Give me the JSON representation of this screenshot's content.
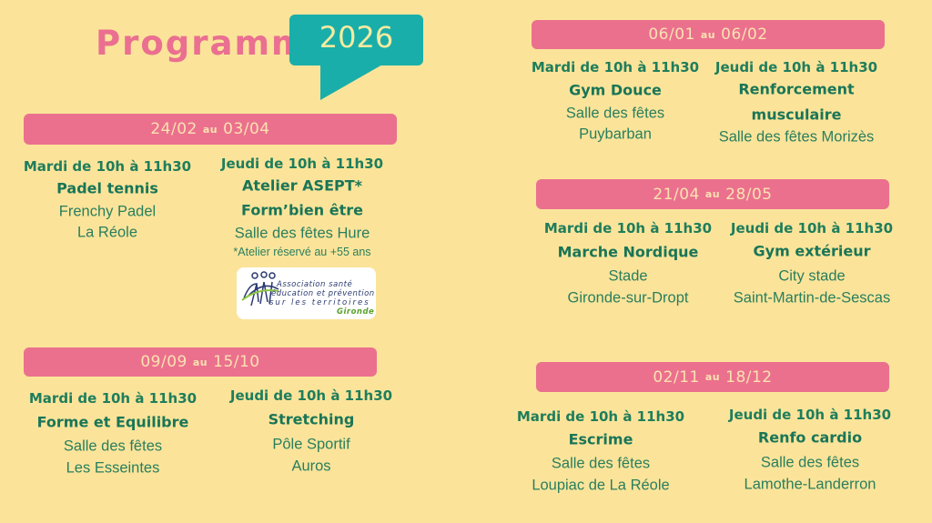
{
  "header": {
    "title": "Programme",
    "year": "2026"
  },
  "colors": {
    "background": "#fbe49a",
    "pink": "#eb708e",
    "teal": "#1aaeaa",
    "text_green": "#1f7d5c"
  },
  "sessions": [
    {
      "from": "06/01",
      "au": "au",
      "to": "06/02",
      "left": {
        "day": "Mardi de 10h à 11h30",
        "activity": [
          "Gym Douce"
        ],
        "place": [
          "Salle des fêtes",
          "Puybarban"
        ]
      },
      "right": {
        "day": "Jeudi de 10h à 11h30",
        "activity": [
          "Renforcement",
          "musculaire"
        ],
        "place": [
          "Salle des fêtes Morizès"
        ]
      }
    },
    {
      "from": "24/02",
      "au": "au",
      "to": "03/04",
      "left": {
        "day": "Mardi de 10h à 11h30",
        "activity": [
          "Padel tennis"
        ],
        "place": [
          "Frenchy Padel",
          "La Réole"
        ]
      },
      "right": {
        "day": "Jeudi de 10h à 11h30",
        "activity": [
          "Atelier ASEPT*",
          "Form’bien être"
        ],
        "place": [
          "Salle des fêtes Hure"
        ],
        "note": "*Atelier réservé au +55 ans"
      }
    },
    {
      "from": "21/04",
      "au": "au",
      "to": "28/05",
      "left": {
        "day": "Mardi de 10h à 11h30",
        "activity": [
          "Marche Nordique"
        ],
        "place": [
          "Stade",
          "Gironde-sur-Dropt"
        ]
      },
      "right": {
        "day": "Jeudi de 10h à 11h30",
        "activity": [
          "Gym extérieur"
        ],
        "place": [
          "City stade",
          "Saint-Martin-de-Sescas"
        ]
      }
    },
    {
      "from": "09/09",
      "au": "au",
      "to": "15/10",
      "left": {
        "day": "Mardi de 10h à 11h30",
        "activity": [
          "Forme et Equilibre"
        ],
        "place": [
          "Salle des fêtes",
          "Les Esseintes"
        ]
      },
      "right": {
        "day": "Jeudi de 10h à 11h30",
        "activity": [
          "Stretching"
        ],
        "place": [
          "Pôle Sportif",
          "Auros"
        ]
      }
    },
    {
      "from": "02/11",
      "au": "au",
      "to": "18/12",
      "left": {
        "day": "Mardi de 10h à 11h30",
        "activity": [
          "Escrime"
        ],
        "place": [
          "Salle des fêtes",
          "Loupiac de La Réole"
        ]
      },
      "right": {
        "day": "Jeudi de 10h à 11h30",
        "activity": [
          "Renfo cardio"
        ],
        "place": [
          "Salle des fêtes",
          "Lamothe-Landerron"
        ]
      }
    }
  ],
  "logo": {
    "lines": [
      "Association santé",
      "éducation et prévention",
      "sur les territoires"
    ],
    "region": "Gironde"
  }
}
